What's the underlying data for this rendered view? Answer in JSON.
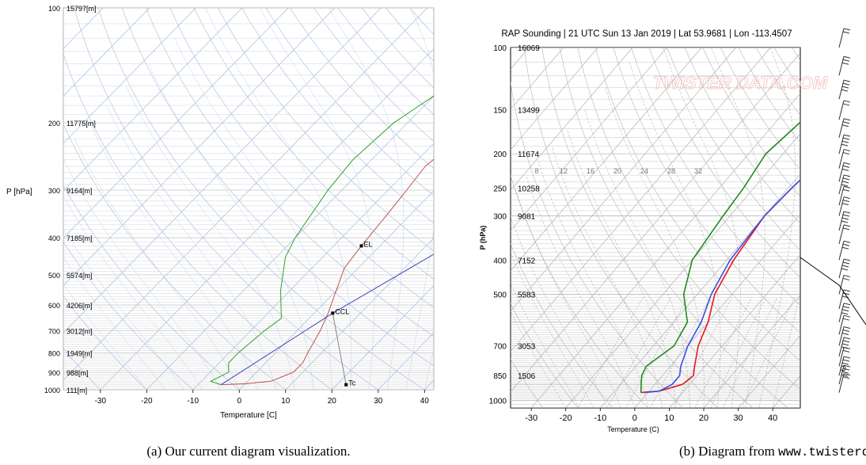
{
  "chart_data": [
    {
      "type": "line",
      "caption": "(a) Our current diagram visualization.",
      "xlabel": "Temperature [C]",
      "ylabel": "P [hPa]",
      "xlim": [
        -38,
        42
      ],
      "ylim": [
        1000,
        100
      ],
      "y_scale": "log",
      "x_ticks": [
        "-30",
        "-20",
        "-10",
        "0",
        "10",
        "20",
        "30",
        "40"
      ],
      "x_tick_values": [
        -30,
        -20,
        -10,
        0,
        10,
        20,
        30,
        40
      ],
      "y_ticks": [
        {
          "p": 100,
          "p_label": "100",
          "h": "15797[m]"
        },
        {
          "p": 200,
          "p_label": "200",
          "h": "11775[m]"
        },
        {
          "p": 300,
          "p_label": "300",
          "h": "9164[m]"
        },
        {
          "p": 400,
          "p_label": "400",
          "h": "7185[m]"
        },
        {
          "p": 500,
          "p_label": "500",
          "h": "5574[m]"
        },
        {
          "p": 600,
          "p_label": "600",
          "h": "4206[m]"
        },
        {
          "p": 700,
          "p_label": "700",
          "h": "3012[m]"
        },
        {
          "p": 800,
          "p_label": "800",
          "h": "1949[m]"
        },
        {
          "p": 900,
          "p_label": "900",
          "h": "988[m]"
        },
        {
          "p": 1000,
          "p_label": "1000",
          "h": "111[m]"
        }
      ],
      "grid": true,
      "skew_factor": 35,
      "series": [
        {
          "role": "temperature",
          "color": "#c0504d",
          "points": [
            [
              -5,
              970
            ],
            [
              0,
              965
            ],
            [
              5,
              950
            ],
            [
              8,
              900
            ],
            [
              8,
              850
            ],
            [
              7,
              800
            ],
            [
              5,
              700
            ],
            [
              3,
              630
            ],
            [
              0,
              550
            ],
            [
              -3,
              480
            ],
            [
              -4,
              420
            ],
            [
              -5,
              350
            ],
            [
              -6,
              300
            ],
            [
              -7,
              260
            ],
            [
              -6,
              230
            ],
            [
              -5,
              210
            ],
            [
              -4,
              190
            ],
            [
              -3,
              170
            ],
            [
              -2,
              150
            ],
            [
              0,
              130
            ],
            [
              2,
              110
            ],
            [
              3,
              100
            ]
          ]
        },
        {
          "role": "dewpoint",
          "color": "#2ea02e",
          "points": [
            [
              -5,
              970
            ],
            [
              -8,
              950
            ],
            [
              -6,
              900
            ],
            [
              -8,
              850
            ],
            [
              -8,
              800
            ],
            [
              -7,
              700
            ],
            [
              -6,
              650
            ],
            [
              -12,
              550
            ],
            [
              -18,
              450
            ],
            [
              -20,
              400
            ],
            [
              -23,
              300
            ],
            [
              -24,
              250
            ],
            [
              -23,
              200
            ],
            [
              -20,
              170
            ],
            [
              -15,
              140
            ],
            [
              -10,
              120
            ],
            [
              -5,
              100
            ]
          ]
        },
        {
          "role": "lifting",
          "color": "#4040c0",
          "points": [
            [
              -5,
              970
            ],
            [
              4,
              630
            ],
            [
              42,
              150
            ]
          ]
        },
        {
          "role": "ccl-to-tc",
          "color": "#888888",
          "points": [
            [
              4,
              630
            ],
            [
              22,
              970
            ]
          ]
        }
      ],
      "annotations": [
        {
          "text": "EL",
          "x": -4,
          "p": 420
        },
        {
          "text": "CCL",
          "x": 4,
          "p": 630
        },
        {
          "text": "Tc",
          "x": 22,
          "p": 970
        }
      ]
    },
    {
      "type": "line",
      "caption_prefix": "(b) Diagram from",
      "caption_site": "www.twisterdata.com",
      "caption_suffix": ".",
      "title": "RAP Sounding | 21 UTC Sun 13 Jan 2019 | Lat 53.9681 | Lon -113.4507",
      "xlabel": "Temperature (C)",
      "ylabel": "P (hPa)",
      "watermark": "TWISTER DATA.COM",
      "xlim": [
        -36,
        48
      ],
      "ylim": [
        1050,
        100
      ],
      "y_scale": "log",
      "x_ticks": [
        "-30",
        "-20",
        "-10",
        "0",
        "10",
        "20",
        "30",
        "40"
      ],
      "x_tick_values": [
        -30,
        -20,
        -10,
        0,
        10,
        20,
        30,
        40
      ],
      "y_ticks": [
        {
          "p": 100,
          "p_label": "100",
          "h": "16069"
        },
        {
          "p": 150,
          "p_label": "150",
          "h": "13499"
        },
        {
          "p": 200,
          "p_label": "200",
          "h": "11674"
        },
        {
          "p": 250,
          "p_label": "250",
          "h": "10258"
        },
        {
          "p": 300,
          "p_label": "300",
          "h": "9081"
        },
        {
          "p": 400,
          "p_label": "400",
          "h": "7152"
        },
        {
          "p": 500,
          "p_label": "500",
          "h": "5583"
        },
        {
          "p": 700,
          "p_label": "700",
          "h": "3053"
        },
        {
          "p": 850,
          "p_label": "850",
          "h": "1506"
        },
        {
          "p": 1000,
          "p_label": "1000",
          "h": ""
        }
      ],
      "mixing_ratio_labels": [
        "8",
        "12",
        "16",
        "20",
        "24",
        "28",
        "32"
      ],
      "mixing_ratio_values": [
        8,
        12,
        16,
        20,
        24,
        28,
        32
      ],
      "grid": true,
      "skew_factor": 38,
      "series": [
        {
          "role": "temperature",
          "color": "#e8141c",
          "points": [
            [
              -2,
              950
            ],
            [
              3,
              940
            ],
            [
              8,
              900
            ],
            [
              9,
              850
            ],
            [
              7,
              800
            ],
            [
              3,
              700
            ],
            [
              0,
              600
            ],
            [
              -5,
              500
            ],
            [
              -8,
              400
            ],
            [
              -10,
              300
            ],
            [
              -9,
              250
            ],
            [
              -7,
              200
            ],
            [
              -2,
              150
            ],
            [
              5,
              100
            ]
          ]
        },
        {
          "role": "virtual-temperature",
          "color": "#3a4fe0",
          "points": [
            [
              -1,
              950
            ],
            [
              3,
              940
            ],
            [
              5,
              900
            ],
            [
              5,
              850
            ],
            [
              3,
              800
            ],
            [
              0,
              700
            ],
            [
              -2,
              600
            ],
            [
              -6,
              500
            ],
            [
              -9,
              400
            ],
            [
              -10,
              300
            ],
            [
              -9,
              250
            ],
            [
              -7,
              200
            ],
            [
              -2,
              150
            ],
            [
              5,
              100
            ]
          ]
        },
        {
          "role": "dewpoint",
          "color": "#1e8c1e",
          "points": [
            [
              -2,
              950
            ],
            [
              -4,
              900
            ],
            [
              -6,
              850
            ],
            [
              -7,
              800
            ],
            [
              -4,
              700
            ],
            [
              -6,
              600
            ],
            [
              -14,
              500
            ],
            [
              -20,
              400
            ],
            [
              -22,
              300
            ],
            [
              -23,
              250
            ],
            [
              -25,
              200
            ],
            [
              -22,
              150
            ],
            [
              -14,
              100
            ]
          ]
        }
      ],
      "wind_barbs_at": [
        100,
        120,
        140,
        160,
        180,
        200,
        220,
        240,
        260,
        280,
        300,
        330,
        360,
        400,
        450,
        500,
        550,
        600,
        650,
        700,
        750,
        800,
        850,
        900,
        950
      ]
    }
  ]
}
